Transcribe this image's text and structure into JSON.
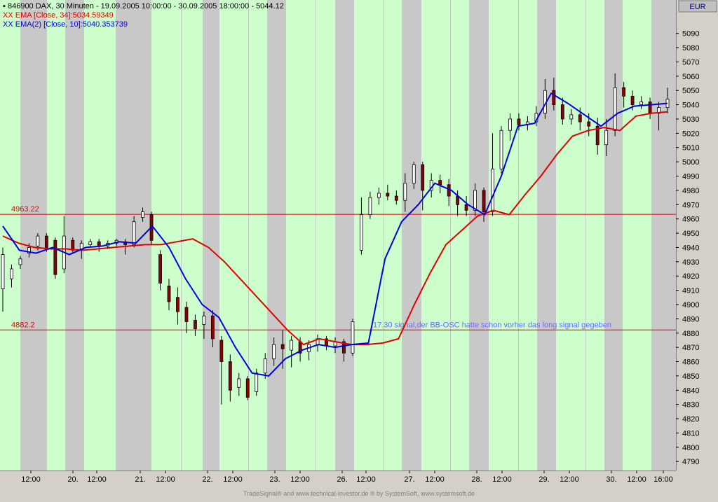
{
  "header": {
    "line1": {
      "prefix": "▪ ",
      "text": "846900  DAX, 30 Minuten - 19.09.2005 10:00:00 - 30.09.2005 18:00:00 - 5044.12",
      "color": "#000000"
    },
    "line2": {
      "prefix": "XX ",
      "text": "EMA [Close, 34]:5034.59349",
      "color": "#e00000"
    },
    "line3": {
      "prefix": "XX ",
      "text": "EMA(2) [Close, 10]:5040.353739",
      "color": "#0000e0"
    }
  },
  "currency_label": "EUR",
  "footer": "TradeSignal® and www.technical-investor.de ® by  SystemSoft, www.systemsoft.de",
  "colors": {
    "background": "#c8c8c8",
    "session_band": "#ccffcc",
    "ema34": "#e00000",
    "ema10": "#0000e0",
    "up_candle": "#ffffff",
    "down_candle": "#8b0000",
    "hline": "#e00000",
    "annotation": "#6a6aff"
  },
  "chart_data": {
    "type": "line",
    "ylim": [
      4780,
      5100
    ],
    "y_ticks": [
      4790,
      4800,
      4810,
      4820,
      4830,
      4840,
      4850,
      4860,
      4870,
      4880,
      4890,
      4900,
      4910,
      4920,
      4930,
      4940,
      4950,
      4960,
      4970,
      4980,
      4990,
      5000,
      5010,
      5020,
      5030,
      5040,
      5050,
      5060,
      5070,
      5080,
      5090
    ],
    "x_tick_labels": [
      "12:00",
      "20.",
      "12:00",
      "21.",
      "12:00",
      "22.",
      "12:00",
      "23.",
      "12:00",
      "26.",
      "12:00",
      "27.",
      "12:00",
      "28.",
      "12:00",
      "29.",
      "12:00",
      "30.",
      "12:00",
      "16:00"
    ],
    "horizontal_lines": [
      {
        "label": "4963.22",
        "value": 4963.22
      },
      {
        "label": "4882.2",
        "value": 4882.2
      }
    ],
    "annotation": {
      "text": "17.30 signal,der BB-OSC hatte schon vorher das long signal gegeben",
      "value": 4882.2
    },
    "series": [
      {
        "name": "EMA [Close, 34]",
        "values": [
          4948,
          4943,
          4940,
          4939,
          4939,
          4938,
          4939,
          4940,
          4941,
          4942,
          4942,
          4944,
          4946,
          4940,
          4930,
          4918,
          4906,
          4894,
          4882,
          4872,
          4876,
          4874,
          4872,
          4872,
          4873,
          4876,
          4900,
          4922,
          4942,
          4952,
          4962,
          4966,
          4963,
          4977,
          4990,
          5005,
          5018,
          5022,
          5024,
          5022,
          5032,
          5034,
          5035
        ]
      },
      {
        "name": "EMA(2) [Close, 10]",
        "values": [
          4955,
          4938,
          4936,
          4940,
          4935,
          4940,
          4941,
          4944,
          4943,
          4955,
          4940,
          4918,
          4900,
          4891,
          4870,
          4852,
          4850,
          4862,
          4868,
          4872,
          4870,
          4872,
          4873,
          4932,
          4958,
          4970,
          4985,
          4980,
          4970,
          4963,
          4990,
          5025,
          5027,
          5048,
          5041,
          5033,
          5025,
          5034,
          5039,
          5040,
          5041
        ]
      }
    ],
    "candles": [
      [
        4911,
        4935,
        4895,
        4940
      ],
      [
        4918,
        4925,
        4912,
        4928
      ],
      [
        4928,
        4932,
        4925,
        4934
      ],
      [
        4936,
        4940,
        4933,
        4943
      ],
      [
        4941,
        4948,
        4938,
        4950
      ],
      [
        4948,
        4940,
        4937,
        4950
      ],
      [
        4945,
        4921,
        4918,
        4947
      ],
      [
        4925,
        4948,
        4922,
        4962
      ],
      [
        4945,
        4938,
        4936,
        4947
      ],
      [
        4939,
        4943,
        4932,
        4945
      ],
      [
        4942,
        4944,
        4940,
        4946
      ],
      [
        4944,
        4941,
        4937,
        4946
      ],
      [
        4941,
        4943,
        4939,
        4945
      ],
      [
        4943,
        4945,
        4941,
        4946
      ],
      [
        4944,
        4942,
        4935,
        4946
      ],
      [
        4942,
        4958,
        4940,
        4962
      ],
      [
        4961,
        4965,
        4958,
        4968
      ],
      [
        4963,
        4945,
        4942,
        4965
      ],
      [
        4935,
        4915,
        4910,
        4938
      ],
      [
        4913,
        4902,
        4896,
        4918
      ],
      [
        4905,
        4895,
        4886,
        4912
      ],
      [
        4898,
        4888,
        4880,
        4902
      ],
      [
        4889,
        4883,
        4878,
        4893
      ],
      [
        4886,
        4892,
        4876,
        4895
      ],
      [
        4892,
        4876,
        4870,
        4896
      ],
      [
        4875,
        4860,
        4830,
        4878
      ],
      [
        4860,
        4840,
        4832,
        4865
      ],
      [
        4842,
        4848,
        4836,
        4852
      ],
      [
        4848,
        4835,
        4833,
        4850
      ],
      [
        4839,
        4852,
        4836,
        4855
      ],
      [
        4852,
        4862,
        4848,
        4866
      ],
      [
        4862,
        4872,
        4857,
        4877
      ],
      [
        4872,
        4869,
        4855,
        4882
      ],
      [
        4868,
        4875,
        4856,
        4878
      ],
      [
        4874,
        4866,
        4860,
        4877
      ],
      [
        4867,
        4872,
        4861,
        4875
      ],
      [
        4872,
        4876,
        4867,
        4879
      ],
      [
        4876,
        4871,
        4868,
        4878
      ],
      [
        4871,
        4874,
        4866,
        4877
      ],
      [
        4874,
        4866,
        4860,
        4876
      ],
      [
        4866,
        4888,
        4864,
        4890
      ],
      [
        4938,
        4963,
        4935,
        4975
      ],
      [
        4963,
        4975,
        4960,
        4979
      ],
      [
        4975,
        4978,
        4970,
        4982
      ],
      [
        4978,
        4976,
        4973,
        4984
      ],
      [
        4976,
        4973,
        4970,
        4980
      ],
      [
        4973,
        4985,
        4965,
        4992
      ],
      [
        4985,
        4998,
        4981,
        5000
      ],
      [
        4998,
        4980,
        4966,
        5000
      ],
      [
        4980,
        4987,
        4975,
        4992
      ],
      [
        4987,
        4984,
        4978,
        4991
      ],
      [
        4984,
        4976,
        4969,
        4988
      ],
      [
        4976,
        4970,
        4962,
        4980
      ],
      [
        4970,
        4966,
        4962,
        4976
      ],
      [
        4966,
        4980,
        4962,
        4985
      ],
      [
        4980,
        4965,
        4958,
        4982
      ],
      [
        4965,
        4995,
        4962,
        5020
      ],
      [
        4995,
        5022,
        4992,
        5025
      ],
      [
        5022,
        5030,
        5015,
        5034
      ],
      [
        5030,
        5026,
        5022,
        5034
      ],
      [
        5026,
        5028,
        5022,
        5032
      ],
      [
        5028,
        5034,
        5025,
        5039
      ],
      [
        5034,
        5050,
        5030,
        5058
      ],
      [
        5050,
        5040,
        5036,
        5059
      ],
      [
        5040,
        5030,
        5026,
        5045
      ],
      [
        5030,
        5033,
        5026,
        5037
      ],
      [
        5033,
        5028,
        5022,
        5038
      ],
      [
        5028,
        5025,
        5018,
        5034
      ],
      [
        5025,
        5012,
        5005,
        5031
      ],
      [
        5012,
        5022,
        5004,
        5030
      ],
      [
        5022,
        5052,
        5018,
        5062
      ],
      [
        5052,
        5046,
        5038,
        5056
      ],
      [
        5046,
        5040,
        5036,
        5050
      ],
      [
        5040,
        5042,
        5037,
        5046
      ],
      [
        5042,
        5034,
        5030,
        5045
      ],
      [
        5034,
        5038,
        5022,
        5042
      ],
      [
        5038,
        5044,
        5034,
        5052
      ]
    ]
  }
}
